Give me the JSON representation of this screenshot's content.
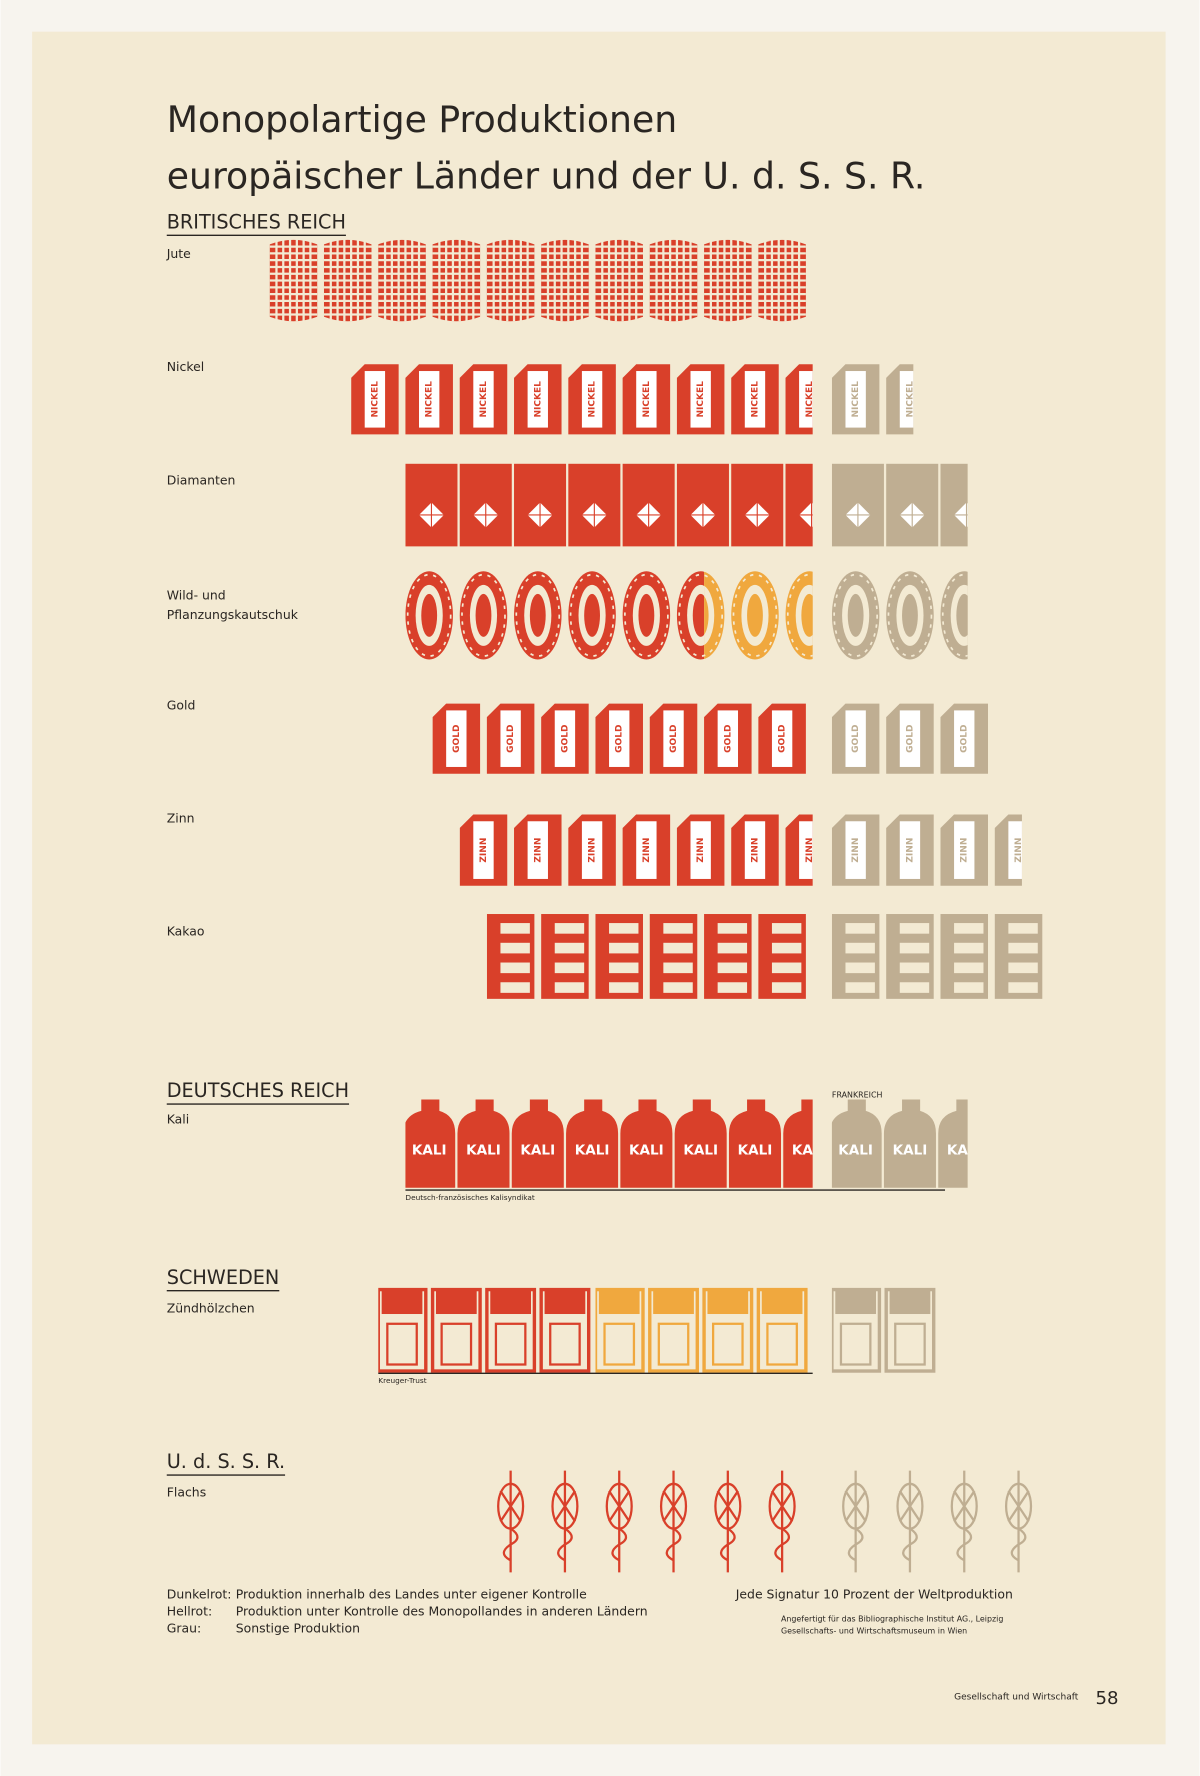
{
  "chart_data": {
    "type": "isotype",
    "title": [
      "Monopolartige Produktionen",
      "europäischer Länder und der U. d. S. S. R."
    ],
    "series": [
      {
        "name": "Dunkelrot:",
        "description": "Produktion innerhalb des Landes unter eigener Kontrolle",
        "color": "#d9402a"
      },
      {
        "name": "Hellrot:",
        "description": "Produktion unter Kontrolle des Monopollandes in anderen Ländern",
        "color": "#f0a83e"
      },
      {
        "name": "Grau:",
        "description": "Sonstige Produktion",
        "color": "#bfae92"
      }
    ],
    "groups": [
      {
        "title": "BRITISCHES REICH",
        "rows": [
          {
            "label": [
              "Jute"
            ],
            "values": [
              100,
              0,
              0
            ]
          },
          {
            "label": [
              "Nickel"
            ],
            "icon_label": "NICKEL",
            "values": [
              85,
              0,
              15
            ]
          },
          {
            "label": [
              "Diamanten"
            ],
            "values": [
              75,
              0,
              25
            ]
          },
          {
            "label": [
              "Wild- und",
              "Pflanzungskautschuk"
            ],
            "values": [
              55,
              20,
              25
            ]
          },
          {
            "label": [
              "Gold"
            ],
            "icon_label": "GOLD",
            "values": [
              70,
              0,
              30
            ]
          },
          {
            "label": [
              "Zinn"
            ],
            "icon_label": "ZINN",
            "values": [
              65,
              0,
              35
            ]
          },
          {
            "label": [
              "Kakao"
            ],
            "values": [
              60,
              0,
              40
            ]
          }
        ]
      },
      {
        "title": "DEUTSCHES REICH",
        "rows": [
          {
            "label": [
              "Kali"
            ],
            "icon_label": "KALI",
            "values": [
              75,
              0,
              25
            ],
            "over_label": "FRANKREICH",
            "bracket_label": "Deutsch-französisches Kalisyndikat"
          }
        ]
      },
      {
        "title": "SCHWEDEN",
        "rows": [
          {
            "label": [
              "Zündhölzchen"
            ],
            "values": [
              40,
              40,
              20
            ],
            "bracket_label": "Kreuger-Trust"
          }
        ]
      },
      {
        "title": "U. d. S. S. R.",
        "rows": [
          {
            "label": [
              "Flachs"
            ],
            "values": [
              60,
              0,
              40
            ]
          }
        ]
      }
    ],
    "scale_note": "Jede Signatur 10 Prozent der Weltproduktion",
    "credits": [
      "Angefertigt für das Bibliographische Institut AG., Leipzig",
      "Gesellschafts- und Wirtschaftsmuseum in Wien"
    ],
    "footer": "Gesellschaft und Wirtschaft",
    "page_number": "58"
  }
}
